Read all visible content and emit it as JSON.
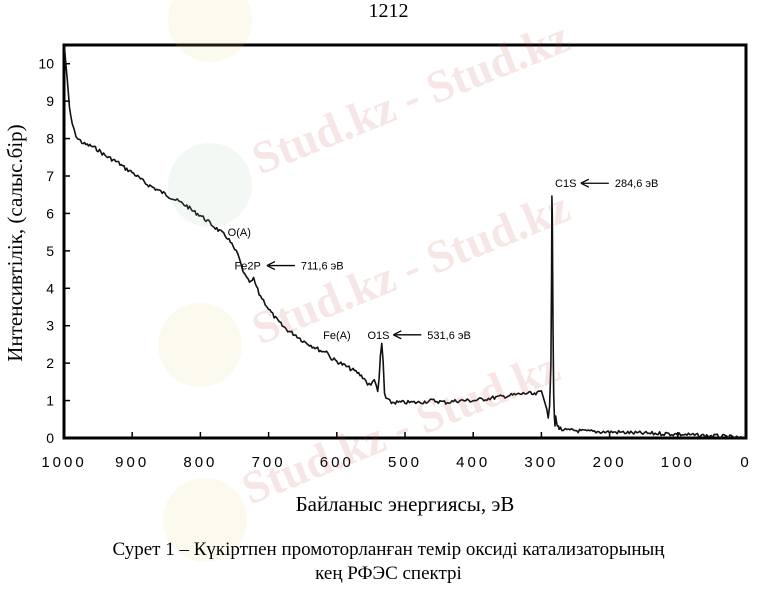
{
  "page_number": "1212",
  "watermark_text": "Stud.kz - Stud.kz",
  "caption": {
    "line1": "Сурет 1 – Күкіртпен промоторланған темір оксиді катализаторының",
    "line2": "кең РФЭС спектрі"
  },
  "chart_data": {
    "type": "line",
    "xlabel": "Байланыс энергиясы, эВ",
    "ylabel": "Интенсивтілік, (салыс.бір)",
    "xlim": [
      1000,
      0
    ],
    "ylim": [
      0,
      10.5
    ],
    "x_ticks": [
      "1000",
      "900",
      "800",
      "700",
      "600",
      "500",
      "400",
      "300",
      "200",
      "100",
      "0"
    ],
    "y_ticks": [
      "0",
      "1",
      "2",
      "3",
      "4",
      "5",
      "6",
      "7",
      "8",
      "9",
      "10"
    ],
    "grid": false,
    "series": [
      {
        "x": [
          1000,
          995,
          992,
          988,
          985,
          980,
          970,
          960,
          950,
          940,
          930,
          920,
          910,
          900,
          890,
          880,
          870,
          860,
          850,
          840,
          830,
          820,
          810,
          800,
          790,
          780,
          770,
          760,
          752,
          745,
          740,
          735,
          730,
          726,
          722,
          718,
          714,
          710,
          705,
          700,
          690,
          680,
          670,
          660,
          650,
          640,
          630,
          620,
          615,
          610,
          600,
          590,
          580,
          570,
          560,
          555,
          550,
          545,
          542,
          540,
          538,
          536,
          534,
          532,
          530,
          528,
          525,
          520,
          510,
          500,
          480,
          460,
          440,
          420,
          400,
          380,
          360,
          340,
          320,
          310,
          300,
          295,
          292,
          290,
          288,
          286,
          285,
          284.6,
          284,
          283,
          282,
          281,
          280,
          279,
          278,
          277,
          276,
          275,
          274,
          273,
          272,
          270,
          268,
          265,
          260,
          250,
          240,
          220,
          200,
          180,
          160,
          140,
          120,
          100,
          80,
          60,
          40,
          30,
          20,
          10,
          5,
          0
        ],
        "y": [
          10.6,
          9.5,
          8.8,
          8.4,
          8.2,
          8.0,
          7.85,
          7.8,
          7.7,
          7.55,
          7.45,
          7.35,
          7.2,
          7.1,
          6.95,
          6.8,
          6.7,
          6.6,
          6.5,
          6.4,
          6.3,
          6.2,
          6.05,
          5.95,
          5.8,
          5.65,
          5.5,
          5.35,
          5.1,
          4.9,
          4.6,
          4.35,
          4.2,
          4.15,
          4.25,
          4.05,
          3.85,
          3.75,
          3.6,
          3.45,
          3.2,
          3.0,
          2.85,
          2.75,
          2.6,
          2.5,
          2.4,
          2.3,
          2.35,
          2.15,
          2.05,
          1.95,
          1.85,
          1.75,
          1.6,
          1.45,
          1.4,
          1.6,
          1.4,
          1.2,
          1.55,
          2.2,
          2.5,
          2.0,
          1.2,
          1.05,
          1.0,
          0.95,
          0.95,
          0.95,
          0.95,
          1.0,
          0.95,
          1.0,
          1.0,
          1.05,
          1.1,
          1.15,
          1.2,
          1.15,
          1.25,
          1.0,
          0.8,
          0.5,
          0.8,
          2.0,
          4.5,
          6.5,
          6.0,
          3.0,
          1.2,
          0.5,
          0.3,
          0.6,
          0.4,
          0.35,
          0.3,
          0.3,
          0.28,
          0.25,
          0.25,
          0.22,
          0.22,
          0.2,
          0.2,
          0.2,
          0.18,
          0.17,
          0.16,
          0.15,
          0.13,
          0.12,
          0.12,
          0.1,
          0.08,
          0.06,
          0.05,
          0.03,
          0.02,
          0.0,
          -0.02,
          -0.05
        ]
      }
    ],
    "annotations": [
      {
        "id": "oa",
        "label": "O(A)",
        "x": 760,
        "y": 5.4,
        "arrow": false
      },
      {
        "id": "fe2p",
        "label": "Fe2P",
        "x": 750,
        "y": 4.5,
        "arrow": true,
        "arrow_label": "711,6 эВ"
      },
      {
        "id": "fea",
        "label": "Fe(A)",
        "x": 620,
        "y": 2.65,
        "arrow": false
      },
      {
        "id": "o1s",
        "label": "O1S",
        "x": 555,
        "y": 2.65,
        "arrow": true,
        "arrow_label": "531,6 эВ"
      },
      {
        "id": "c1s",
        "label": "C1S",
        "x": 280,
        "y": 6.7,
        "arrow": true,
        "arrow_label": "284,6 эВ"
      }
    ]
  }
}
